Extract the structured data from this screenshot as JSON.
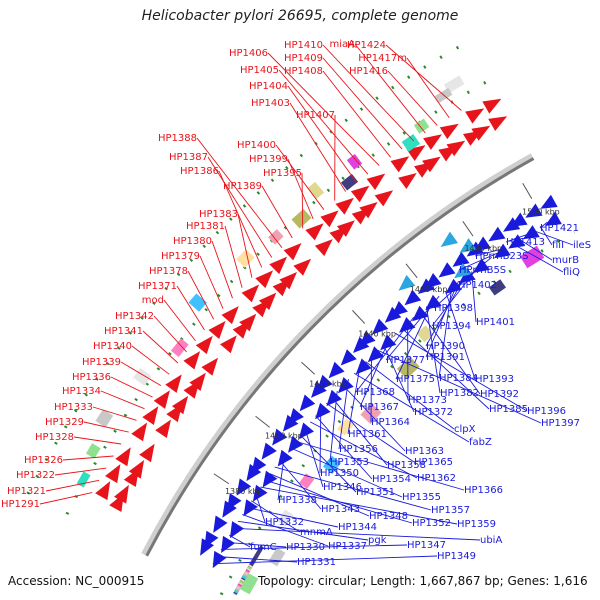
{
  "title": "Helicobacter pylori 26695, complete genome",
  "accession": "Accession: NC_000915",
  "summary": "Topology: circular; Length: 1,667,867 bp; Genes: 1,616",
  "colors": {
    "forward": "#e8141b",
    "reverse": "#1a1adc",
    "rrna": "#2aa6e0",
    "backbone": "#777777",
    "tick_dot": "#2a8a2a"
  },
  "scale_labels": [
    "1380 kbp",
    "1400 kbp",
    "1420 kbp",
    "1440 kbp",
    "1460 kbp",
    "1480 kbp",
    "1500 kbp"
  ],
  "forward_labels": [
    "HP1424",
    "HP1417m",
    "HP1416",
    "miaA",
    "HP1410",
    "HP1409",
    "HP1408",
    "HP1406",
    "HP1405",
    "HP1404",
    "HP1403",
    "HP1407",
    "HP1400",
    "HP1399",
    "HP1395",
    "HP1389",
    "HP1388",
    "HP1387",
    "HP1386",
    "HP1383",
    "HP1381",
    "HP1380",
    "HP1379",
    "HP1378",
    "HP1371",
    "mod",
    "HP1342",
    "HP1341",
    "HP1340",
    "HP1339",
    "HP1336",
    "HP1334",
    "HP1333",
    "HP1329",
    "HP1328",
    "HP1326",
    "HP1322",
    "HP1321",
    "HP1291"
  ],
  "reverse_labels": [
    "HP1421",
    "fliI",
    "ileS",
    "HP1413",
    "murB",
    "fliQ",
    "HPrrnB23S",
    "HPrrnB5S",
    "HP1402",
    "HP1398",
    "HP1394",
    "HP1401",
    "HP1390",
    "HP1391",
    "HP1384",
    "HP1393",
    "HP1377",
    "HP1375",
    "HP1382",
    "HP1392",
    "HP1368",
    "HP1373",
    "HP1385",
    "HP1396",
    "HP1367",
    "HP1372",
    "HP1397",
    "HP1364",
    "clpX",
    "HP1361",
    "fabZ",
    "HP1356",
    "HP1363",
    "HP1353",
    "HP1358",
    "HP1365",
    "HP1350",
    "HP1354",
    "HP1362",
    "HP1346",
    "HP1351",
    "HP1366",
    "HP1355",
    "HP1338",
    "HP1343",
    "HP1357",
    "HP1348",
    "HP1352",
    "HP1359",
    "HP1332",
    "mnmA",
    "HP1344",
    "HP1337",
    "pgk",
    "ubiA",
    "fumC",
    "HP1330",
    "HP1347",
    "HP1331",
    "HP1349"
  ]
}
